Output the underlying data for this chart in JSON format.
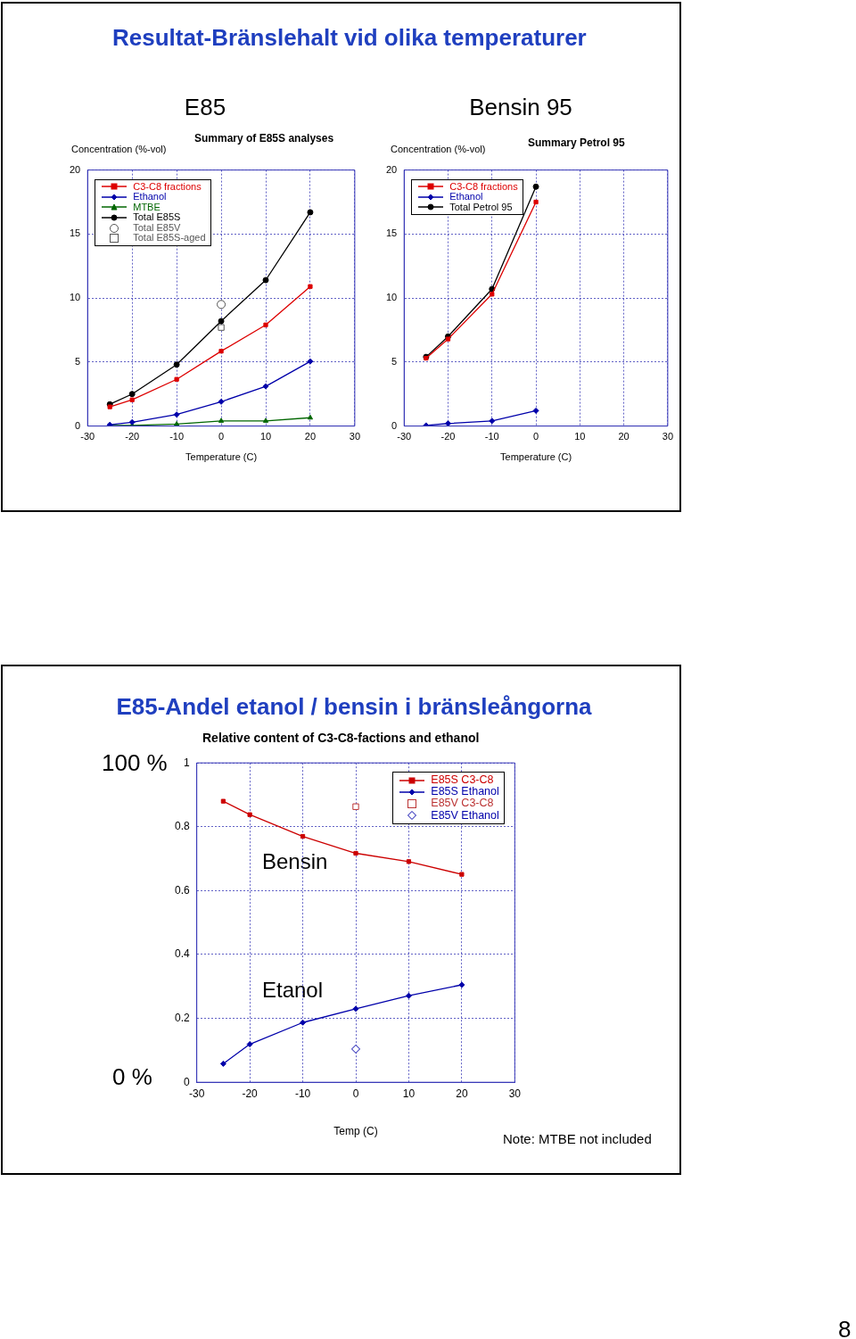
{
  "chart_data": [
    {
      "type": "line",
      "title": "E85",
      "subtitle": "Summary of E85S analyses",
      "ylabel": "Concentration (%-vol)",
      "xlabel": "Temperature (C)",
      "annotations": [
        "Resultat-Bränslehalt vid olika temperaturer"
      ],
      "xlim": [
        -30,
        30
      ],
      "ylim": [
        0,
        20
      ],
      "xticks": [
        -30,
        -20,
        -10,
        0,
        10,
        20,
        30
      ],
      "yticks": [
        0,
        5,
        10,
        15,
        20
      ],
      "grid": true,
      "legend": "top left",
      "x": [
        -25,
        -20,
        -10,
        0,
        10,
        20
      ],
      "series": [
        {
          "name": "C3-C8 fractions",
          "color": "#dd0000",
          "marker": "square",
          "values": [
            1.5,
            2.05,
            3.65,
            5.85,
            7.9,
            10.9
          ]
        },
        {
          "name": "Ethanol",
          "color": "#0000aa",
          "marker": "diamond",
          "values": [
            0.1,
            0.3,
            0.9,
            1.9,
            3.1,
            5.05
          ]
        },
        {
          "name": "MTBE",
          "color": "#006600",
          "marker": "triangle",
          "values": [
            0.05,
            0.05,
            0.15,
            0.4,
            0.4,
            0.65
          ]
        },
        {
          "name": "Total E85S",
          "color": "#000000",
          "marker": "circle",
          "values": [
            1.7,
            2.5,
            4.8,
            8.2,
            11.4,
            16.7
          ]
        },
        {
          "name": "Total E85V",
          "color": "#555555",
          "type": "scatter",
          "marker": "circle",
          "values": [
            null,
            null,
            null,
            9.5,
            null,
            null
          ]
        },
        {
          "name": "Total E85S-aged",
          "color": "#555555",
          "type": "scatter",
          "marker": "square",
          "values": [
            null,
            null,
            null,
            7.7,
            null,
            null
          ]
        }
      ]
    },
    {
      "type": "line",
      "title": "Bensin 95",
      "subtitle": "Summary Petrol 95",
      "ylabel": "Concentration (%-vol)",
      "xlabel": "Temperature (C)",
      "xlim": [
        -30,
        30
      ],
      "ylim": [
        0,
        20
      ],
      "xticks": [
        -30,
        -20,
        -10,
        0,
        10,
        20,
        30
      ],
      "yticks": [
        0,
        5,
        10,
        15,
        20
      ],
      "grid": true,
      "legend": "top left",
      "x": [
        -25,
        -20,
        -10,
        0
      ],
      "series": [
        {
          "name": "C3-C8 fractions",
          "color": "#dd0000",
          "marker": "square",
          "values": [
            5.3,
            6.8,
            10.3,
            17.5
          ]
        },
        {
          "name": "Ethanol",
          "color": "#0000aa",
          "marker": "diamond",
          "values": [
            0.05,
            0.2,
            0.4,
            1.2
          ]
        },
        {
          "name": "Total Petrol 95",
          "color": "#000000",
          "marker": "circle",
          "values": [
            5.4,
            7.0,
            10.7,
            18.7
          ]
        }
      ]
    },
    {
      "type": "line",
      "title": "E85-Andel etanol / bensin i bränsleångorna",
      "subtitle": "Relative content of C3-C8-factions and ethanol",
      "xlabel": "Temp (C)",
      "xlim": [
        -30,
        30
      ],
      "ylim": [
        0,
        1
      ],
      "xticks": [
        -30,
        -20,
        -10,
        0,
        10,
        20,
        30
      ],
      "yticks": [
        0,
        0.2,
        0.4,
        0.6,
        0.8,
        1
      ],
      "grid": true,
      "legend": "top right",
      "x": [
        -25,
        -20,
        -10,
        0,
        10,
        20
      ],
      "annotations": [
        "Note: MTBE not included",
        "8",
        "100 %",
        "0 %",
        "Bensin",
        "Etanol"
      ],
      "series": [
        {
          "name": "E85S C3-C8",
          "color": "#cc0000",
          "marker": "square",
          "values": [
            0.88,
            0.838,
            0.77,
            0.717,
            0.691,
            0.651
          ]
        },
        {
          "name": "E85S Ethanol",
          "color": "#0000aa",
          "marker": "diamond",
          "values": [
            0.058,
            0.119,
            0.187,
            0.23,
            0.271,
            0.305
          ]
        },
        {
          "name": "E85V C3-C8",
          "color": "#bb3333",
          "type": "scatter",
          "marker": "square",
          "values": [
            null,
            null,
            null,
            0.863,
            null,
            null
          ]
        },
        {
          "name": "E85V Ethanol",
          "color": "#0000aa",
          "type": "scatter",
          "marker": "diamond",
          "values": [
            null,
            null,
            null,
            0.104,
            null,
            null
          ]
        }
      ]
    }
  ]
}
